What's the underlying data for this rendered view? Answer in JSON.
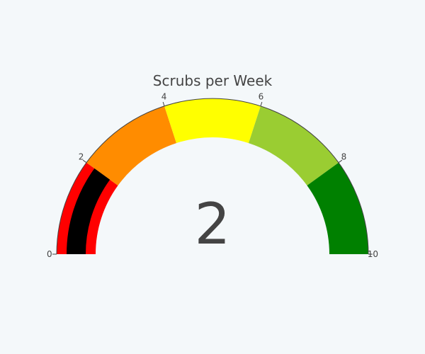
{
  "chart_data": {
    "type": "gauge",
    "title": "Scrubs per Week",
    "value": 2,
    "value_label": "2",
    "range": [
      0,
      10
    ],
    "ticks": [
      {
        "value": 0,
        "label": "0"
      },
      {
        "value": 2,
        "label": "2"
      },
      {
        "value": 4,
        "label": "4"
      },
      {
        "value": 6,
        "label": "6"
      },
      {
        "value": 8,
        "label": "8"
      },
      {
        "value": 10,
        "label": "10"
      }
    ],
    "bands": [
      {
        "from": 0,
        "to": 2,
        "color": "#ff0000"
      },
      {
        "from": 2,
        "to": 4,
        "color": "#ff8c00"
      },
      {
        "from": 4,
        "to": 6,
        "color": "#ffff00"
      },
      {
        "from": 6,
        "to": 8,
        "color": "#9acd32"
      },
      {
        "from": 8,
        "to": 10,
        "color": "#008000"
      }
    ],
    "bar_color": "#000000",
    "background_color": "#f4f8fa",
    "text_color": "#444444"
  }
}
